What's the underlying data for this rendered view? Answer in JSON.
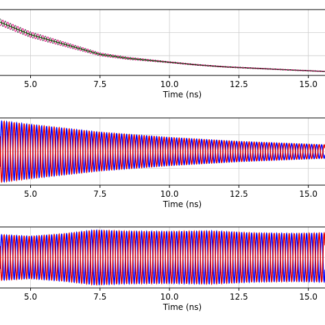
{
  "chart_data": [
    {
      "type": "line",
      "title": "",
      "xlabel": "Time (ns)",
      "ylabel": "",
      "xlim": [
        3.9,
        15.6
      ],
      "xticks": [
        "5.0",
        "7.5",
        "10.0",
        "12.5",
        "15.0"
      ],
      "grid": true,
      "series": [
        {
          "color": "#008000",
          "x": [
            3.9,
            5.0,
            6.0,
            7.0,
            7.5,
            8.5,
            10.0,
            11.0,
            12.0,
            12.5,
            13.5,
            14.5,
            15.6
          ],
          "y": [
            0.81,
            0.62,
            0.5,
            0.38,
            0.32,
            0.26,
            0.2,
            0.16,
            0.13,
            0.12,
            0.1,
            0.08,
            0.06
          ]
        },
        {
          "color": "#e6007e",
          "period_ns": 0.18,
          "envelope_x": [
            3.9,
            5.0,
            7.5,
            10.0,
            12.5,
            15.6
          ],
          "envelope_halfwidth": [
            0.05,
            0.045,
            0.025,
            0.01,
            0.008,
            0.006
          ]
        }
      ]
    },
    {
      "type": "line",
      "title": "",
      "xlabel": "Time (ns)",
      "ylabel": "",
      "xlim": [
        3.9,
        15.6
      ],
      "xticks": [
        "5.0",
        "7.5",
        "10.0",
        "12.5",
        "15.0"
      ],
      "grid": true,
      "series": [
        {
          "color": "#0000ff",
          "period_ns": 0.18,
          "envelope_x": [
            3.9,
            5.0,
            7.5,
            10.0,
            12.5,
            15.6
          ],
          "amplitude": [
            1.0,
            0.88,
            0.63,
            0.46,
            0.33,
            0.22
          ]
        },
        {
          "color": "#e00000",
          "period_ns": 0.18,
          "phase_shift_ns": 0.09,
          "envelope_x": [
            3.9,
            5.0,
            7.5,
            10.0,
            12.5,
            15.6
          ],
          "amplitude": [
            1.0,
            0.88,
            0.63,
            0.46,
            0.33,
            0.22
          ]
        }
      ]
    },
    {
      "type": "line",
      "title": "",
      "xlabel": "Time (ns)",
      "ylabel": "",
      "xlim": [
        3.9,
        15.6
      ],
      "xticks": [
        "5.0",
        "7.5",
        "10.0",
        "12.5",
        "15.0"
      ],
      "grid": true,
      "series": [
        {
          "color": "#0000ff",
          "period_ns": 0.18,
          "envelope_x": [
            3.9,
            5.0,
            6.2,
            7.3,
            8.5,
            10.0,
            11.5,
            13.0,
            14.5,
            15.6
          ],
          "amplitude": [
            0.82,
            0.76,
            0.85,
            0.98,
            0.94,
            0.93,
            0.95,
            0.88,
            0.86,
            0.88
          ]
        },
        {
          "color": "#e00000",
          "period_ns": 0.18,
          "phase_shift_ns": 0.09,
          "envelope_x": [
            3.9,
            5.0,
            6.2,
            7.3,
            8.5,
            10.0,
            11.5,
            13.0,
            14.5,
            15.6
          ],
          "amplitude": [
            0.82,
            0.76,
            0.85,
            0.98,
            0.94,
            0.93,
            0.95,
            0.88,
            0.86,
            0.88
          ]
        }
      ]
    }
  ]
}
